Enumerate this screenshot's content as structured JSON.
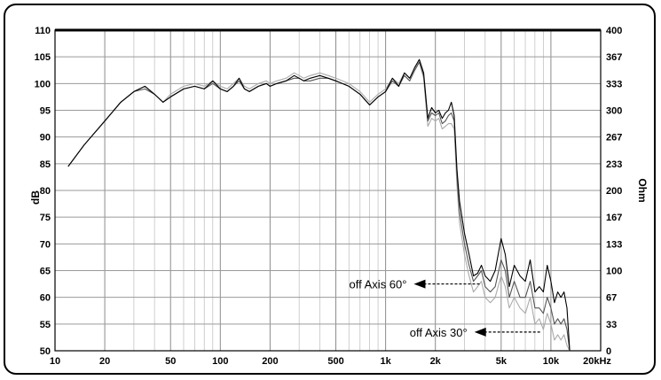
{
  "chart_data": {
    "type": "line",
    "xscale": "log",
    "xlim": [
      10,
      20000
    ],
    "ylim": [
      50,
      110
    ],
    "y2lim": [
      0,
      400
    ],
    "grid": true,
    "ylabel": "dB",
    "y2label": "Ohm",
    "x_ticks": [
      {
        "value": 10,
        "label": "10"
      },
      {
        "value": 20,
        "label": "20"
      },
      {
        "value": 50,
        "label": "50"
      },
      {
        "value": 100,
        "label": "100"
      },
      {
        "value": 200,
        "label": "200"
      },
      {
        "value": 500,
        "label": "500"
      },
      {
        "value": 1000,
        "label": "1k"
      },
      {
        "value": 2000,
        "label": "2k"
      },
      {
        "value": 5000,
        "label": "5k"
      },
      {
        "value": 10000,
        "label": "10k"
      },
      {
        "value": 20000,
        "label": "20kHz"
      }
    ],
    "y_ticks": [
      "50",
      "55",
      "60",
      "65",
      "70",
      "75",
      "80",
      "85",
      "90",
      "95",
      "100",
      "105",
      "110"
    ],
    "y2_ticks": [
      "0",
      "33",
      "67",
      "100",
      "133",
      "167",
      "200",
      "233",
      "267",
      "300",
      "333",
      "367",
      "400"
    ],
    "annotations": [
      {
        "text": "off Axis 60°",
        "target_x": 3700,
        "target_y": 62.5
      },
      {
        "text": "off Axis 30°",
        "target_x": 8600,
        "target_y": 53.5
      }
    ],
    "series": [
      {
        "color": "#000000",
        "x": [
          12,
          15,
          20,
          25,
          30,
          35,
          40,
          45,
          50,
          60,
          70,
          80,
          90,
          100,
          110,
          120,
          130,
          140,
          150,
          170,
          190,
          200,
          220,
          250,
          280,
          300,
          320,
          350,
          400,
          450,
          500,
          600,
          700,
          800,
          900,
          1000,
          1100,
          1200,
          1300,
          1400,
          1500,
          1600,
          1700,
          1800,
          1900,
          2000,
          2100,
          2200,
          2300,
          2400,
          2500,
          2600,
          2700,
          2800,
          3000,
          3200,
          3400,
          3600,
          3800,
          4000,
          4300,
          4600,
          5000,
          5300,
          5600,
          6000,
          6500,
          7000,
          7500,
          8000,
          8500,
          9000,
          9500,
          10000,
          10500,
          11000,
          11500,
          12000,
          12500,
          13000
        ],
        "y": [
          84.5,
          88.5,
          93,
          96.5,
          98.5,
          99.5,
          98,
          96.5,
          97.5,
          99,
          99.5,
          99,
          100.5,
          99,
          98.5,
          99.5,
          101,
          99,
          98.5,
          99.5,
          100,
          99.5,
          100,
          100.5,
          101.5,
          101,
          100.5,
          101,
          101.5,
          101,
          100.5,
          99.5,
          98,
          96,
          97.5,
          98.5,
          101,
          99.5,
          102,
          101,
          103,
          104.5,
          102,
          93.5,
          95.5,
          94.5,
          95,
          93.5,
          94.5,
          95,
          96.5,
          94,
          84,
          78,
          72,
          68,
          64,
          64.5,
          66,
          64,
          63,
          65,
          71,
          68,
          62,
          66,
          64,
          63,
          67,
          61,
          62,
          61,
          66,
          63,
          59,
          61,
          60,
          61,
          58,
          50
        ]
      },
      {
        "color": "#555555",
        "x": [
          12,
          15,
          20,
          25,
          30,
          35,
          40,
          45,
          50,
          60,
          70,
          80,
          90,
          100,
          110,
          120,
          130,
          140,
          150,
          170,
          190,
          200,
          220,
          250,
          280,
          300,
          320,
          350,
          400,
          450,
          500,
          600,
          700,
          800,
          900,
          1000,
          1100,
          1200,
          1300,
          1400,
          1500,
          1600,
          1700,
          1800,
          1900,
          2000,
          2100,
          2200,
          2300,
          2400,
          2500,
          2600,
          2700,
          2800,
          3000,
          3200,
          3400,
          3600,
          3800,
          4000,
          4300,
          4600,
          5000,
          5300,
          5600,
          6000,
          6500,
          7000,
          7500,
          8000,
          8500,
          9000,
          9500,
          10000,
          10500,
          11000,
          11500,
          12000,
          12500,
          13000
        ],
        "y": [
          84.5,
          88.5,
          93,
          96.5,
          98.5,
          99,
          98,
          96.5,
          97.5,
          99,
          99.5,
          99,
          100,
          99,
          98.5,
          99.5,
          100.5,
          99,
          98.5,
          99.5,
          100,
          99.5,
          100,
          100.5,
          101,
          101,
          100.5,
          100.5,
          101,
          101,
          100.5,
          99.5,
          98,
          96,
          97.5,
          98.5,
          100.5,
          99.5,
          101.5,
          100.5,
          102.5,
          104,
          101.5,
          93,
          94.5,
          94,
          94.5,
          92.5,
          93,
          94,
          94.5,
          93,
          83,
          76,
          70,
          66,
          63,
          64,
          65,
          62,
          61,
          62,
          67,
          65,
          60,
          63,
          60,
          60,
          63,
          58,
          58,
          57,
          60,
          58,
          55,
          56,
          55,
          56,
          54,
          50
        ]
      },
      {
        "color": "#aaaaaa",
        "x": [
          12,
          15,
          20,
          25,
          30,
          35,
          40,
          45,
          50,
          60,
          70,
          80,
          90,
          100,
          110,
          120,
          130,
          140,
          150,
          170,
          190,
          200,
          220,
          250,
          280,
          300,
          320,
          350,
          400,
          450,
          500,
          600,
          700,
          800,
          900,
          1000,
          1100,
          1200,
          1300,
          1400,
          1500,
          1600,
          1700,
          1800,
          1900,
          2000,
          2100,
          2200,
          2300,
          2400,
          2500,
          2600,
          2700,
          2800,
          3000,
          3200,
          3400,
          3600,
          3800,
          4000,
          4300,
          4600,
          5000,
          5300,
          5600,
          6000,
          6500,
          7000,
          7500,
          8000,
          8500,
          9000,
          9500,
          10000,
          10500,
          11000,
          11500,
          12000,
          12500,
          13000
        ],
        "y": [
          84.5,
          88.5,
          93,
          96.5,
          98.5,
          99.5,
          98,
          96.5,
          98,
          99.5,
          100,
          99.5,
          100.5,
          99.5,
          99,
          100,
          101,
          99.5,
          99,
          100,
          100.5,
          100,
          100.5,
          101,
          102,
          101.5,
          101,
          101.5,
          102,
          101.5,
          101,
          100,
          98.5,
          96.5,
          98,
          99,
          101,
          100,
          102,
          101,
          102.5,
          104,
          101,
          92,
          93.5,
          93,
          93.5,
          91.5,
          92,
          92.5,
          92.5,
          91.5,
          81,
          74,
          68,
          64,
          61,
          62,
          63,
          60,
          59,
          60,
          64,
          62,
          58,
          60,
          58,
          57,
          60,
          55,
          56,
          54,
          57,
          55,
          52,
          53,
          52,
          53,
          51,
          50
        ]
      }
    ]
  }
}
